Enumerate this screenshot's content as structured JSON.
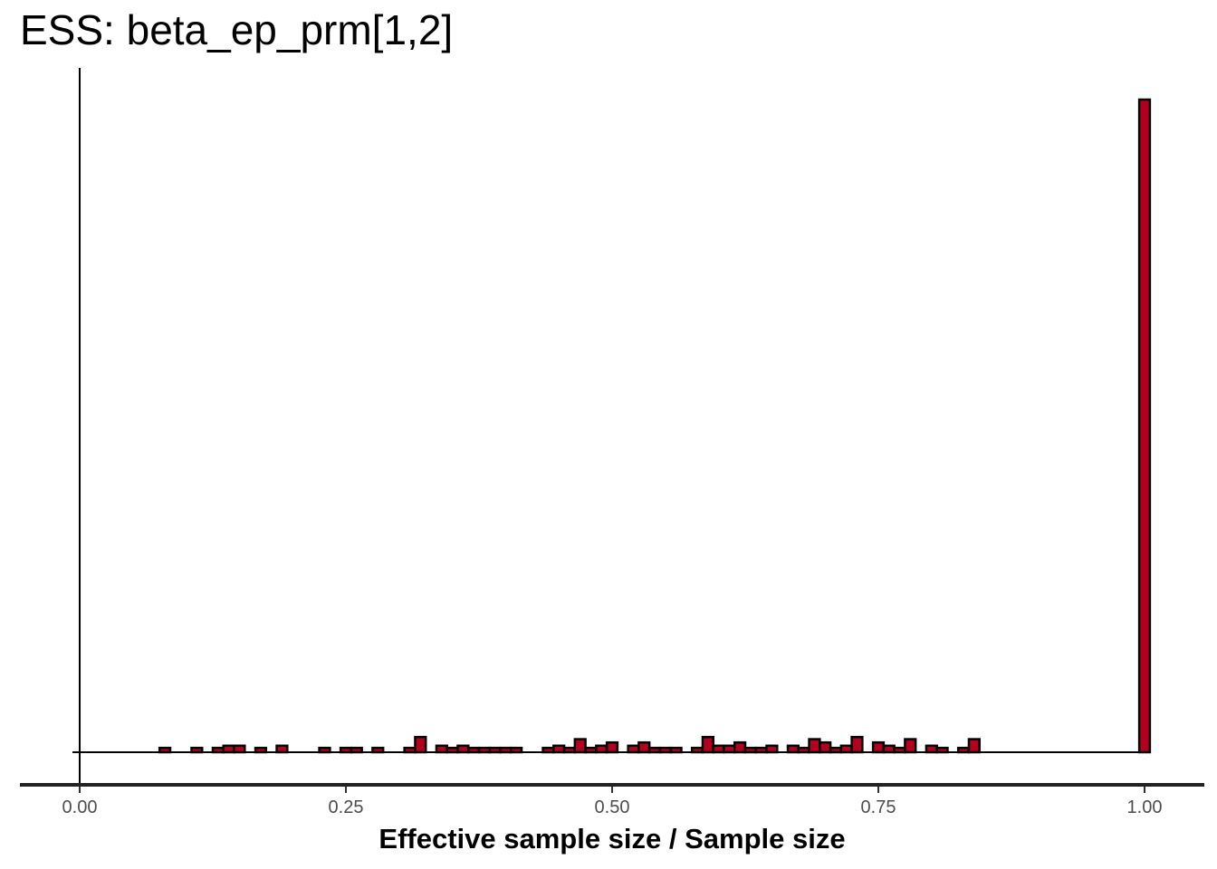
{
  "chart_data": {
    "type": "bar",
    "title": "ESS: beta_ep_prm[1,2]",
    "xlabel": "Effective sample size / Sample size",
    "ylabel": "",
    "xlim": [
      0,
      1.04
    ],
    "ylim": [
      0,
      61
    ],
    "x_ticks": [
      0,
      0.25,
      0.5,
      0.75,
      1.0
    ],
    "x_tick_labels": [
      "0.00",
      "0.25",
      "0.50",
      "0.75",
      "1.00"
    ],
    "bin_width": 0.01,
    "bar_color": "#b2001e",
    "edge_color": "#000000",
    "grid": false,
    "bins": [
      {
        "x": 0.08,
        "count": 0.4
      },
      {
        "x": 0.11,
        "count": 0.4
      },
      {
        "x": 0.13,
        "count": 0.4
      },
      {
        "x": 0.14,
        "count": 0.6
      },
      {
        "x": 0.15,
        "count": 0.6
      },
      {
        "x": 0.17,
        "count": 0.4
      },
      {
        "x": 0.19,
        "count": 0.6
      },
      {
        "x": 0.23,
        "count": 0.4
      },
      {
        "x": 0.25,
        "count": 0.4
      },
      {
        "x": 0.26,
        "count": 0.4
      },
      {
        "x": 0.28,
        "count": 0.4
      },
      {
        "x": 0.31,
        "count": 0.4
      },
      {
        "x": 0.32,
        "count": 1.4
      },
      {
        "x": 0.34,
        "count": 0.6
      },
      {
        "x": 0.35,
        "count": 0.4
      },
      {
        "x": 0.36,
        "count": 0.6
      },
      {
        "x": 0.37,
        "count": 0.4
      },
      {
        "x": 0.38,
        "count": 0.4
      },
      {
        "x": 0.39,
        "count": 0.4
      },
      {
        "x": 0.4,
        "count": 0.4
      },
      {
        "x": 0.41,
        "count": 0.4
      },
      {
        "x": 0.44,
        "count": 0.4
      },
      {
        "x": 0.45,
        "count": 0.6
      },
      {
        "x": 0.46,
        "count": 0.4
      },
      {
        "x": 0.47,
        "count": 1.2
      },
      {
        "x": 0.48,
        "count": 0.4
      },
      {
        "x": 0.49,
        "count": 0.6
      },
      {
        "x": 0.5,
        "count": 0.9
      },
      {
        "x": 0.52,
        "count": 0.6
      },
      {
        "x": 0.53,
        "count": 0.9
      },
      {
        "x": 0.54,
        "count": 0.4
      },
      {
        "x": 0.55,
        "count": 0.4
      },
      {
        "x": 0.56,
        "count": 0.4
      },
      {
        "x": 0.58,
        "count": 0.4
      },
      {
        "x": 0.59,
        "count": 1.4
      },
      {
        "x": 0.6,
        "count": 0.6
      },
      {
        "x": 0.61,
        "count": 0.6
      },
      {
        "x": 0.62,
        "count": 0.9
      },
      {
        "x": 0.63,
        "count": 0.4
      },
      {
        "x": 0.64,
        "count": 0.4
      },
      {
        "x": 0.65,
        "count": 0.6
      },
      {
        "x": 0.67,
        "count": 0.6
      },
      {
        "x": 0.68,
        "count": 0.4
      },
      {
        "x": 0.69,
        "count": 1.2
      },
      {
        "x": 0.7,
        "count": 0.9
      },
      {
        "x": 0.71,
        "count": 0.4
      },
      {
        "x": 0.72,
        "count": 0.6
      },
      {
        "x": 0.73,
        "count": 1.4
      },
      {
        "x": 0.75,
        "count": 0.9
      },
      {
        "x": 0.76,
        "count": 0.6
      },
      {
        "x": 0.77,
        "count": 0.4
      },
      {
        "x": 0.78,
        "count": 1.2
      },
      {
        "x": 0.8,
        "count": 0.6
      },
      {
        "x": 0.81,
        "count": 0.4
      },
      {
        "x": 0.83,
        "count": 0.4
      },
      {
        "x": 0.84,
        "count": 1.2
      },
      {
        "x": 1.0,
        "count": 60
      }
    ]
  }
}
